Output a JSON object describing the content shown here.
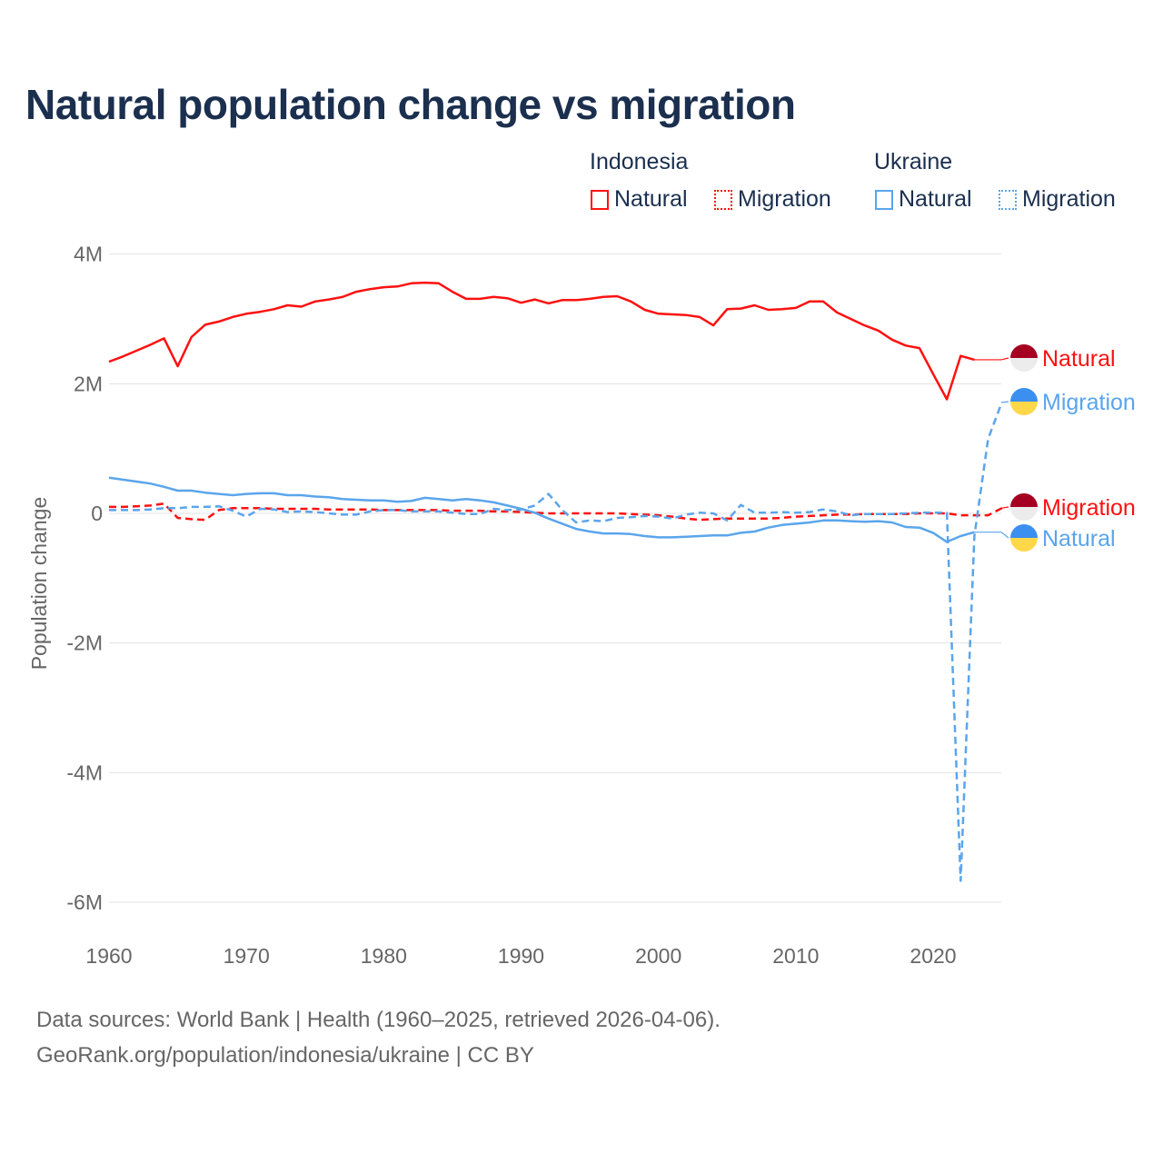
{
  "title": "Natural population change vs migration",
  "legend": {
    "groups": [
      {
        "name": "Indonesia",
        "items": [
          "Natural",
          "Migration"
        ]
      },
      {
        "name": "Ukraine",
        "items": [
          "Natural",
          "Migration"
        ]
      }
    ]
  },
  "colors": {
    "indonesia": "#ff1010",
    "ukraine": "#5aa5ec",
    "text": "#1b2f4e"
  },
  "footer": {
    "line1": "Data sources: World Bank | Health (1960–2025, retrieved 2026-04-06).",
    "line2": "GeoRank.org/population/indonesia/ukraine | CC BY"
  },
  "chart_data": {
    "type": "line",
    "title": "Natural population change vs migration",
    "xlabel": "",
    "ylabel": "Population change",
    "xlim": [
      1960,
      2025
    ],
    "ylim": [
      -6,
      4
    ],
    "y_unit": "millions",
    "xticks": [
      1960,
      1970,
      1980,
      1990,
      2000,
      2010,
      2020
    ],
    "yticks": [
      {
        "v": 4,
        "label": "4M"
      },
      {
        "v": 2,
        "label": "2M"
      },
      {
        "v": 0,
        "label": "0"
      },
      {
        "v": -2,
        "label": "-2M"
      },
      {
        "v": -4,
        "label": "-4M"
      },
      {
        "v": -6,
        "label": "-6M"
      }
    ],
    "grid": true,
    "series": [
      {
        "name": "Natural",
        "country": "Indonesia",
        "key": "indonesia",
        "dash": false,
        "start": 1960,
        "end_label": "Natural",
        "values": [
          2.34,
          2.42,
          2.51,
          2.6,
          2.7,
          2.27,
          2.72,
          2.91,
          2.96,
          3.03,
          3.08,
          3.11,
          3.15,
          3.21,
          3.19,
          3.27,
          3.3,
          3.34,
          3.42,
          3.46,
          3.49,
          3.5,
          3.55,
          3.56,
          3.55,
          3.42,
          3.31,
          3.31,
          3.34,
          3.32,
          3.25,
          3.3,
          3.24,
          3.29,
          3.29,
          3.31,
          3.34,
          3.35,
          3.27,
          3.14,
          3.08,
          3.07,
          3.06,
          3.03,
          2.9,
          3.15,
          3.16,
          3.21,
          3.14,
          3.15,
          3.17,
          3.27,
          3.27,
          3.1,
          3.0,
          2.9,
          2.82,
          2.68,
          2.59,
          2.55,
          2.15,
          1.76,
          2.43,
          2.37
        ]
      },
      {
        "name": "Migration",
        "country": "Indonesia",
        "key": "indonesia",
        "dash": true,
        "start": 1960,
        "end_label": "Migration",
        "values": [
          0.1,
          0.1,
          0.11,
          0.12,
          0.15,
          -0.07,
          -0.09,
          -0.1,
          0.05,
          0.08,
          0.08,
          0.08,
          0.07,
          0.07,
          0.07,
          0.07,
          0.06,
          0.06,
          0.06,
          0.06,
          0.05,
          0.05,
          0.05,
          0.05,
          0.05,
          0.04,
          0.04,
          0.04,
          0.03,
          0.03,
          0.02,
          0.01,
          0.0,
          0.0,
          0.0,
          0.0,
          0.0,
          0.0,
          -0.01,
          -0.02,
          -0.03,
          -0.05,
          -0.08,
          -0.1,
          -0.09,
          -0.08,
          -0.08,
          -0.08,
          -0.08,
          -0.07,
          -0.05,
          -0.04,
          -0.03,
          -0.02,
          -0.02,
          -0.01,
          -0.01,
          -0.01,
          -0.01,
          0.0,
          0.0,
          0.0,
          -0.03,
          -0.03,
          -0.03,
          0.08
        ]
      },
      {
        "name": "Natural",
        "country": "Ukraine",
        "key": "ukraine",
        "dash": false,
        "start": 1960,
        "end_label": "Natural",
        "values": [
          0.55,
          0.52,
          0.49,
          0.46,
          0.41,
          0.35,
          0.35,
          0.32,
          0.3,
          0.28,
          0.3,
          0.31,
          0.31,
          0.28,
          0.28,
          0.26,
          0.25,
          0.22,
          0.21,
          0.2,
          0.2,
          0.18,
          0.19,
          0.24,
          0.22,
          0.2,
          0.22,
          0.2,
          0.17,
          0.12,
          0.07,
          0.01,
          -0.08,
          -0.16,
          -0.24,
          -0.28,
          -0.31,
          -0.31,
          -0.32,
          -0.35,
          -0.37,
          -0.37,
          -0.36,
          -0.35,
          -0.34,
          -0.34,
          -0.3,
          -0.28,
          -0.22,
          -0.18,
          -0.16,
          -0.14,
          -0.11,
          -0.11,
          -0.12,
          -0.13,
          -0.12,
          -0.14,
          -0.21,
          -0.22,
          -0.3,
          -0.44,
          -0.35,
          -0.29
        ]
      },
      {
        "name": "Migration",
        "country": "Ukraine",
        "key": "ukraine",
        "dash": true,
        "start": 1960,
        "end_label": "Migration",
        "values": [
          0.05,
          0.05,
          0.05,
          0.06,
          0.08,
          0.08,
          0.1,
          0.1,
          0.11,
          0.04,
          -0.05,
          0.07,
          0.06,
          0.02,
          0.03,
          0.02,
          0.0,
          -0.02,
          -0.02,
          0.03,
          0.05,
          0.05,
          0.03,
          0.03,
          0.03,
          0.01,
          -0.01,
          -0.01,
          0.07,
          0.05,
          0.06,
          0.12,
          0.3,
          0.05,
          -0.14,
          -0.11,
          -0.12,
          -0.07,
          -0.06,
          -0.04,
          -0.05,
          -0.08,
          -0.02,
          0.01,
          0.0,
          -0.11,
          0.13,
          0.01,
          0.01,
          0.02,
          0.01,
          0.02,
          0.06,
          0.03,
          -0.03,
          -0.01,
          -0.01,
          -0.01,
          0.0,
          0.01,
          0.01,
          0.01,
          -5.67,
          -0.35,
          1.15,
          1.71
        ]
      }
    ]
  }
}
